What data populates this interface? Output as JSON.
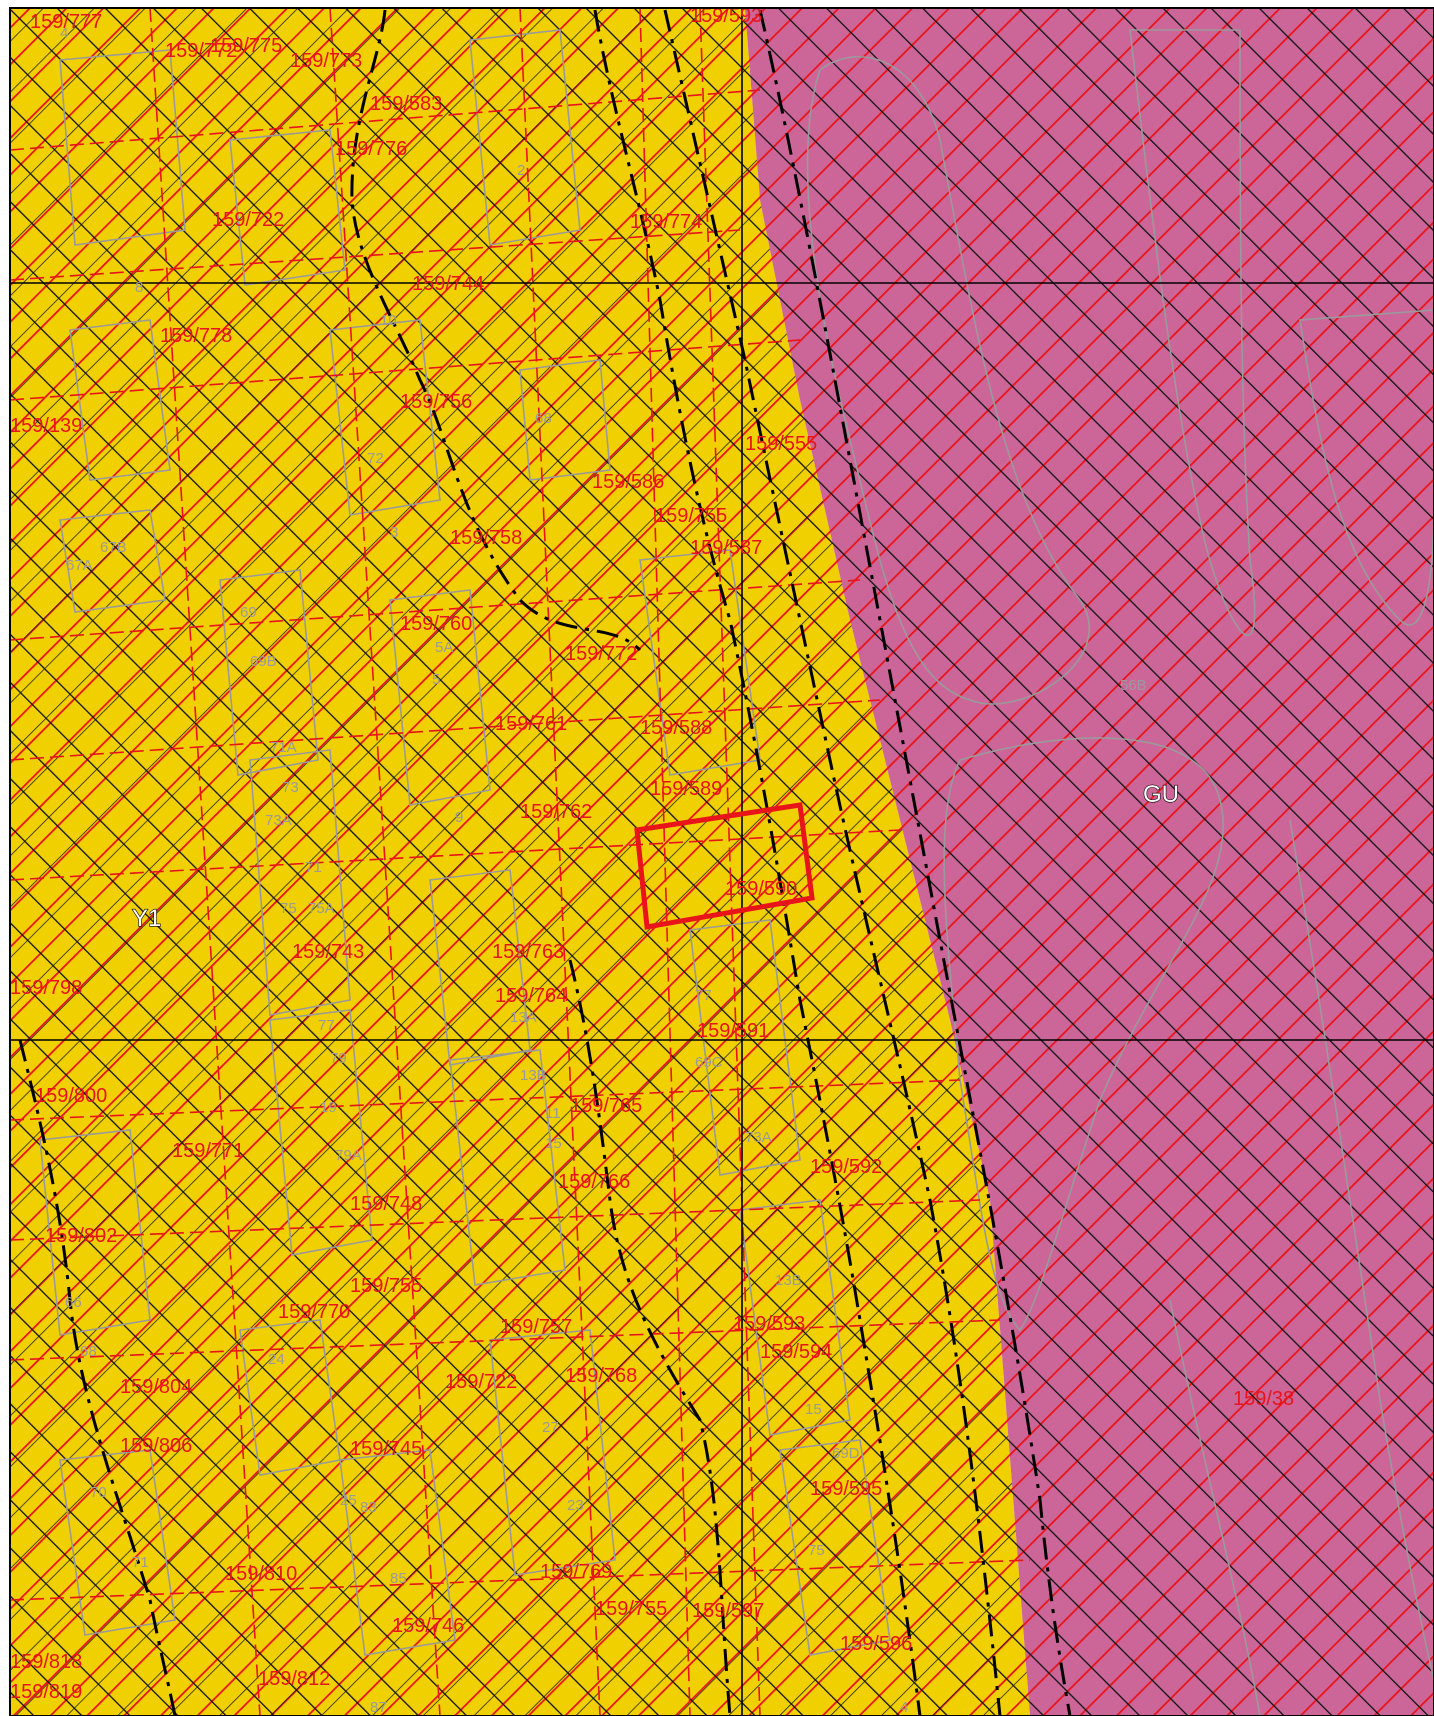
{
  "zones": [
    {
      "code": "Y1",
      "color": "#f0d000"
    },
    {
      "code": "GU",
      "color": "#cc6699"
    }
  ],
  "colors": {
    "hatch_red": "#e8141a",
    "hatch_black": "#111111",
    "parcel_lines": "#9a9a9a",
    "frame": "#000000",
    "selection_box": "#e8141a"
  },
  "parcel_labels": [
    "159/777",
    "159/772",
    "159/775",
    "159/773",
    "159/593",
    "159/583",
    "159/776",
    "159/722",
    "159/774",
    "159/744",
    "159/778",
    "159/139",
    "159/756",
    "159/555",
    "159/586",
    "159/758",
    "159/755",
    "159/587",
    "159/760",
    "159/772",
    "159/761",
    "159/588",
    "159/589",
    "159/762",
    "159/590",
    "159/743",
    "159/763",
    "159/764",
    "159/591",
    "159/798",
    "159/800",
    "159/765",
    "159/771",
    "159/592",
    "159/766",
    "159/748",
    "159/802",
    "159/755",
    "159/770",
    "159/757",
    "159/593",
    "159/594",
    "159/804",
    "159/722",
    "159/768",
    "159/38",
    "159/806",
    "159/745",
    "159/595",
    "159/810",
    "159/769",
    "159/755",
    "159/597",
    "159/746",
    "159/596",
    "159/818",
    "159/812",
    "159/819"
  ],
  "house_numbers": [
    "4",
    "8",
    "10",
    "2",
    "72",
    "68",
    "3",
    "67B",
    "67A",
    "69",
    "69B",
    "5A",
    "5",
    "71A",
    "73",
    "73A",
    "71",
    "9",
    "75",
    "75A",
    "13A",
    "13B",
    "15",
    "11",
    "77",
    "19",
    "79",
    "79A",
    "66",
    "68",
    "24",
    "27",
    "25",
    "23",
    "70",
    "83",
    "85",
    "71",
    "73A",
    "13B",
    "15",
    "75",
    "77",
    "69C",
    "69D",
    "56B",
    "87",
    "4"
  ]
}
